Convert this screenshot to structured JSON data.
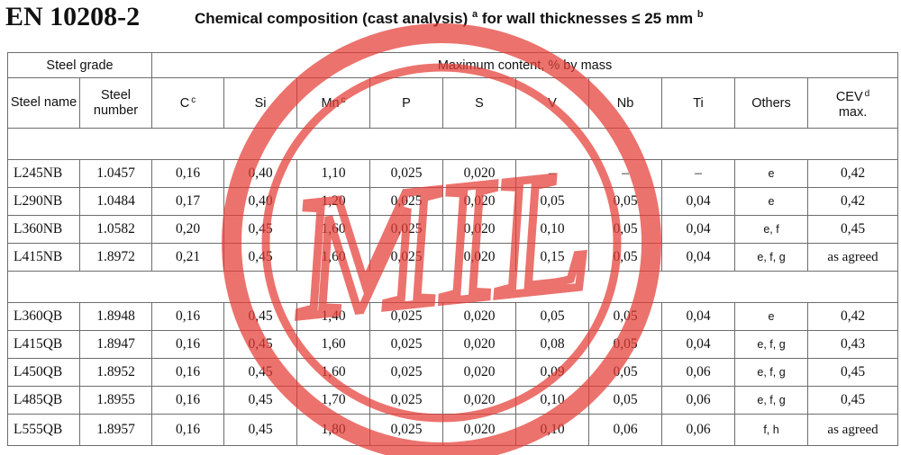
{
  "header": {
    "standard": "EN 10208-2",
    "title": "Chemical composition (cast analysis)",
    "title_sup_a": "a",
    "title_tail": "for wall thicknesses ≤ 25 mm",
    "title_sup_b": "b"
  },
  "table": {
    "group_steel_grade": "Steel grade",
    "group_max_content": "Maximum content, % by mass",
    "col_steel_name": "Steel name",
    "col_steel_number": "Steel number",
    "col_c": "C",
    "col_c_sup": "c",
    "col_si": "Si",
    "col_mn": "Mn",
    "col_mn_sup": "c",
    "col_p": "P",
    "col_s": "S",
    "col_v": "V",
    "col_nb": "Nb",
    "col_ti": "Ti",
    "col_others": "Others",
    "col_cev": "CEV",
    "col_cev_sup": "d",
    "col_cev_max": "max.",
    "nb_rows": [
      {
        "name": "L245NB",
        "number": "1.0457",
        "c": "0,16",
        "si": "0,40",
        "mn": "1,10",
        "p": "0,025",
        "s": "0,020",
        "v": "–",
        "nb": "–",
        "ti": "–",
        "others": "e",
        "cev": "0,42"
      },
      {
        "name": "L290NB",
        "number": "1.0484",
        "c": "0,17",
        "si": "0,40",
        "mn": "1,20",
        "p": "0,025",
        "s": "0,020",
        "v": "0,05",
        "nb": "0,05",
        "ti": "0,04",
        "others": "e",
        "cev": "0,42"
      },
      {
        "name": "L360NB",
        "number": "1.0582",
        "c": "0,20",
        "si": "0,45",
        "mn": "1,60",
        "p": "0,025",
        "s": "0,020",
        "v": "0,10",
        "nb": "0,05",
        "ti": "0,04",
        "others": "e, f",
        "cev": "0,45"
      },
      {
        "name": "L415NB",
        "number": "1.8972",
        "c": "0,21",
        "si": "0,45",
        "mn": "1,60",
        "p": "0,025",
        "s": "0,020",
        "v": "0,15",
        "nb": "0,05",
        "ti": "0,04",
        "others": "e, f, g",
        "cev": "as agreed"
      }
    ],
    "qb_rows": [
      {
        "name": "L360QB",
        "number": "1.8948",
        "c": "0,16",
        "si": "0,45",
        "mn": "1,40",
        "p": "0,025",
        "s": "0,020",
        "v": "0,05",
        "nb": "0,05",
        "ti": "0,04",
        "others": "e",
        "cev": "0,42"
      },
      {
        "name": "L415QB",
        "number": "1.8947",
        "c": "0,16",
        "si": "0,45",
        "mn": "1,60",
        "p": "0,025",
        "s": "0,020",
        "v": "0,08",
        "nb": "0,05",
        "ti": "0,04",
        "others": "e, f, g",
        "cev": "0,43"
      },
      {
        "name": "L450QB",
        "number": "1.8952",
        "c": "0,16",
        "si": "0,45",
        "mn": "1,60",
        "p": "0,025",
        "s": "0,020",
        "v": "0,09",
        "nb": "0,05",
        "ti": "0,06",
        "others": "e, f, g",
        "cev": "0,45"
      },
      {
        "name": "L485QB",
        "number": "1.8955",
        "c": "0,16",
        "si": "0,45",
        "mn": "1,70",
        "p": "0,025",
        "s": "0,020",
        "v": "0,10",
        "nb": "0,05",
        "ti": "0,06",
        "others": "e, f, g",
        "cev": "0,45"
      },
      {
        "name": "L555QB",
        "number": "1.8957",
        "c": "0,16",
        "si": "0,45",
        "mn": "1,80",
        "p": "0,025",
        "s": "0,020",
        "v": "0,10",
        "nb": "0,06",
        "ti": "0,06",
        "others": "f, h",
        "cev": "as agreed"
      }
    ]
  },
  "watermark": {
    "text": "MIL",
    "color": "#e53b35"
  }
}
